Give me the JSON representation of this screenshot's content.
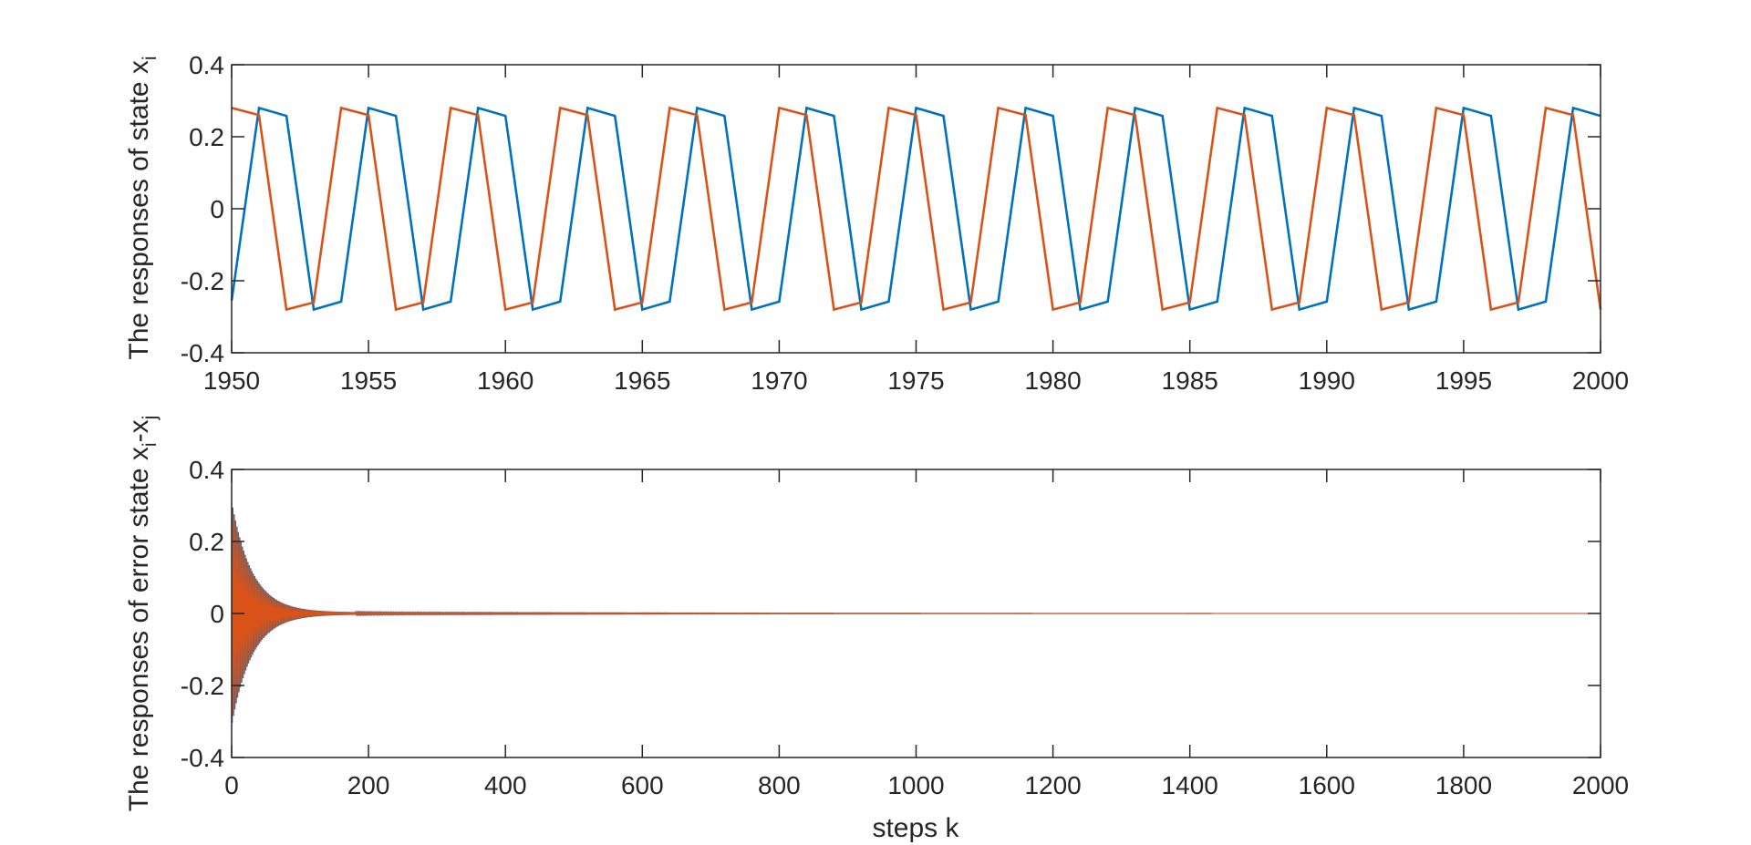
{
  "chart_data": [
    {
      "type": "line",
      "ylabel": "The responses of state x",
      "ylabel_sub": "i",
      "xlabel": "",
      "xlim": [
        1950,
        2000
      ],
      "ylim": [
        -0.4,
        0.4
      ],
      "xticks": [
        "1950",
        "1955",
        "1960",
        "1965",
        "1970",
        "1975",
        "1980",
        "1985",
        "1990",
        "1995",
        "2000"
      ],
      "yticks": [
        "-0.4",
        "-0.2",
        "0",
        "0.2",
        "0.4"
      ],
      "grid": false,
      "series": [
        {
          "color": "#0072BD",
          "x": [
            1950,
            1951,
            1952,
            1953,
            1954,
            1955,
            1956,
            1957,
            1958,
            1959,
            1960,
            1961,
            1962,
            1963,
            1964,
            1965,
            1966,
            1967,
            1968,
            1969,
            1970,
            1971,
            1972,
            1973,
            1974,
            1975,
            1976,
            1977,
            1978,
            1979,
            1980,
            1981,
            1982,
            1983,
            1984,
            1985,
            1986,
            1987,
            1988,
            1989,
            1990,
            1991,
            1992,
            1993,
            1994,
            1995,
            1996,
            1997,
            1998,
            1999,
            2000
          ],
          "values": [
            -0.255,
            0.28,
            0.258,
            -0.28,
            -0.258,
            0.28,
            0.258,
            -0.28,
            -0.258,
            0.28,
            0.258,
            -0.28,
            -0.258,
            0.28,
            0.258,
            -0.28,
            -0.258,
            0.28,
            0.258,
            -0.28,
            -0.258,
            0.28,
            0.258,
            -0.28,
            -0.258,
            0.28,
            0.258,
            -0.28,
            -0.258,
            0.28,
            0.258,
            -0.28,
            -0.258,
            0.28,
            0.258,
            -0.28,
            -0.258,
            0.28,
            0.258,
            -0.28,
            -0.258,
            0.28,
            0.258,
            -0.28,
            -0.258,
            0.28,
            0.258,
            -0.28,
            -0.258,
            0.28,
            0.258
          ]
        },
        {
          "color": "#D95319",
          "x": [
            1950,
            1951,
            1952,
            1953,
            1954,
            1955,
            1956,
            1957,
            1958,
            1959,
            1960,
            1961,
            1962,
            1963,
            1964,
            1965,
            1966,
            1967,
            1968,
            1969,
            1970,
            1971,
            1972,
            1973,
            1974,
            1975,
            1976,
            1977,
            1978,
            1979,
            1980,
            1981,
            1982,
            1983,
            1984,
            1985,
            1986,
            1987,
            1988,
            1989,
            1990,
            1991,
            1992,
            1993,
            1994,
            1995,
            1996,
            1997,
            1998,
            1999,
            2000
          ],
          "values": [
            0.28,
            0.26,
            -0.28,
            -0.26,
            0.28,
            0.26,
            -0.28,
            -0.26,
            0.28,
            0.26,
            -0.28,
            -0.26,
            0.28,
            0.26,
            -0.28,
            -0.26,
            0.28,
            0.26,
            -0.28,
            -0.26,
            0.28,
            0.26,
            -0.28,
            -0.26,
            0.28,
            0.26,
            -0.28,
            -0.26,
            0.28,
            0.26,
            -0.28,
            -0.26,
            0.28,
            0.26,
            -0.28,
            -0.26,
            0.28,
            0.26,
            -0.28,
            -0.26,
            0.28,
            0.26,
            -0.28,
            -0.26,
            0.28,
            0.26,
            -0.28,
            -0.26,
            0.28,
            0.26,
            -0.28
          ]
        }
      ]
    },
    {
      "type": "line",
      "ylabel": "The responses of error state x",
      "ylabel_sub1": "i",
      "ylabel_mid": "-x",
      "ylabel_sub2": "j",
      "xlabel": "steps k",
      "xlim": [
        0,
        2000
      ],
      "ylim": [
        -0.4,
        0.4
      ],
      "xticks": [
        "0",
        "200",
        "400",
        "600",
        "800",
        "1000",
        "1200",
        "1400",
        "1600",
        "1800",
        "2000"
      ],
      "yticks": [
        "-0.4",
        "-0.2",
        "0",
        "0.2",
        "0.4"
      ],
      "grid": false,
      "series": [
        {
          "color": "#0072BD",
          "envelope": {
            "initial_amplitude": 0.31,
            "decay_steps": 30,
            "settled_by_step": 160
          }
        },
        {
          "color": "#D95319",
          "envelope": {
            "initial_amplitude": 0.3,
            "decay_steps": 30,
            "settled_by_step": 160
          }
        }
      ]
    }
  ]
}
